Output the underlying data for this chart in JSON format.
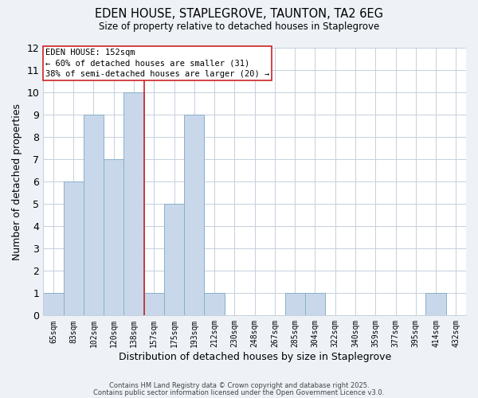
{
  "title1": "EDEN HOUSE, STAPLEGROVE, TAUNTON, TA2 6EG",
  "title2": "Size of property relative to detached houses in Staplegrove",
  "xlabel": "Distribution of detached houses by size in Staplegrove",
  "ylabel": "Number of detached properties",
  "bin_labels": [
    "65sqm",
    "83sqm",
    "102sqm",
    "120sqm",
    "138sqm",
    "157sqm",
    "175sqm",
    "193sqm",
    "212sqm",
    "230sqm",
    "248sqm",
    "267sqm",
    "285sqm",
    "304sqm",
    "322sqm",
    "340sqm",
    "359sqm",
    "377sqm",
    "395sqm",
    "414sqm",
    "432sqm"
  ],
  "bar_values": [
    1,
    6,
    9,
    7,
    10,
    1,
    5,
    9,
    1,
    0,
    0,
    0,
    1,
    1,
    0,
    0,
    0,
    0,
    0,
    1,
    0
  ],
  "bar_color": "#c8d8ea",
  "bar_edge_color": "#8aafc8",
  "vline_x": 4.5,
  "vline_color": "#cc2222",
  "annotation_title": "EDEN HOUSE: 152sqm",
  "annotation_line1": "← 60% of detached houses are smaller (31)",
  "annotation_line2": "38% of semi-detached houses are larger (20) →",
  "ylim": [
    0,
    12
  ],
  "yticks": [
    0,
    1,
    2,
    3,
    4,
    5,
    6,
    7,
    8,
    9,
    10,
    11,
    12
  ],
  "footnote1": "Contains HM Land Registry data © Crown copyright and database right 2025.",
  "footnote2": "Contains public sector information licensed under the Open Government Licence v3.0.",
  "background_color": "#eef2f7",
  "plot_background": "#ffffff",
  "grid_color": "#c5d0dc"
}
